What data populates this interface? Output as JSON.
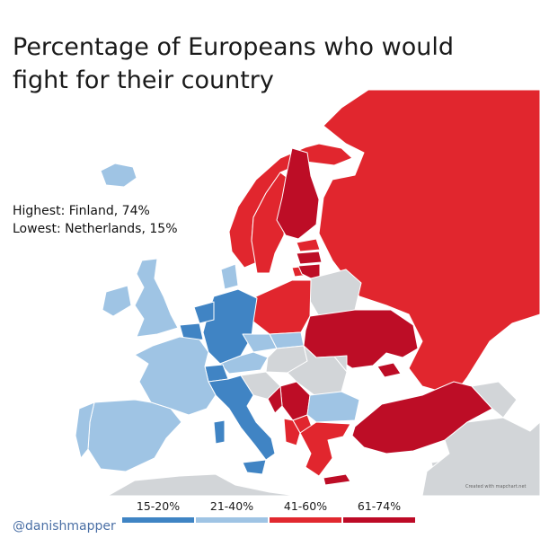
{
  "title_line1": "Percentage of Europeans who would",
  "title_line2": "fight for their country",
  "stats": {
    "highest": "Highest: Finland, 74%",
    "lowest": "Lowest: Netherlands, 15%"
  },
  "legend": [
    {
      "label": "15-20%",
      "color": "#3f84c4"
    },
    {
      "label": "21-40%",
      "color": "#9fc4e4"
    },
    {
      "label": "41-60%",
      "color": "#e1282f"
    },
    {
      "label": "61-74%",
      "color": "#bd0a26"
    }
  ],
  "credit": "@danishmapper",
  "mapchart_credit": "Created with mapchart.net",
  "colors": {
    "band_15_20": "#3f84c4",
    "band_21_40": "#9fc4e4",
    "band_41_60": "#e1282f",
    "band_61_74": "#bd0a26",
    "no_data": "#d2d5d8",
    "sea": "#ffffff"
  }
}
